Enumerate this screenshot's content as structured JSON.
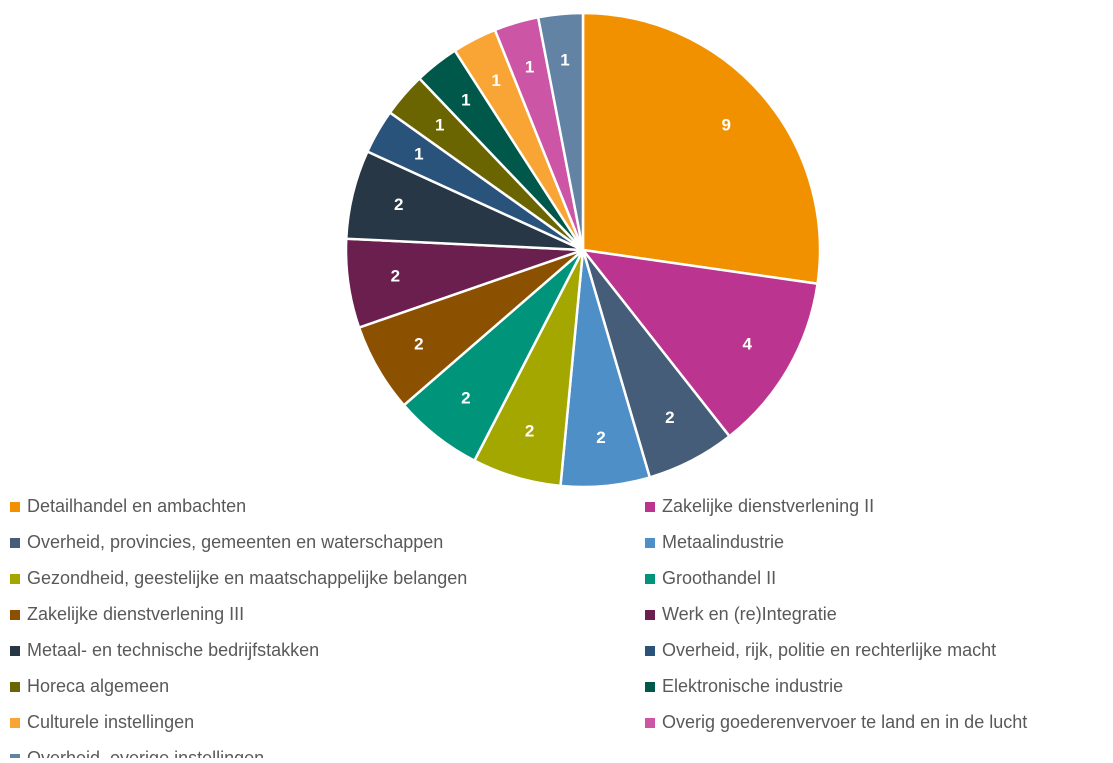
{
  "chart_data": {
    "type": "pie",
    "categories": [
      "Detailhandel en ambachten",
      "Zakelijke dienstverlening II",
      "Overheid, provincies, gemeenten en waterschappen",
      "Metaalindustrie",
      "Gezondheid, geestelijke en maatschappelijke belangen",
      "Groothandel II",
      "Zakelijke dienstverlening III",
      "Werk en (re)Integratie",
      "Metaal- en technische bedrijfstakken",
      "Overheid, rijk, politie en rechterlijke macht",
      "Horeca algemeen",
      "Elektronische industrie",
      "Culturele instellingen",
      "Overig goederenvervoer te land en in de lucht",
      "Overheid, overige instellingen"
    ],
    "values": [
      9,
      4,
      2,
      2,
      2,
      2,
      2,
      2,
      2,
      1,
      1,
      1,
      1,
      1,
      1
    ],
    "colors": [
      "#f29100",
      "#bb3490",
      "#455d78",
      "#4d8fc6",
      "#a3a700",
      "#00957a",
      "#8b5000",
      "#6b1f4e",
      "#283746",
      "#2a537c",
      "#6a6500",
      "#00584a",
      "#f8a535",
      "#cd55a5",
      "#6383a5"
    ],
    "legend": "bottom"
  }
}
